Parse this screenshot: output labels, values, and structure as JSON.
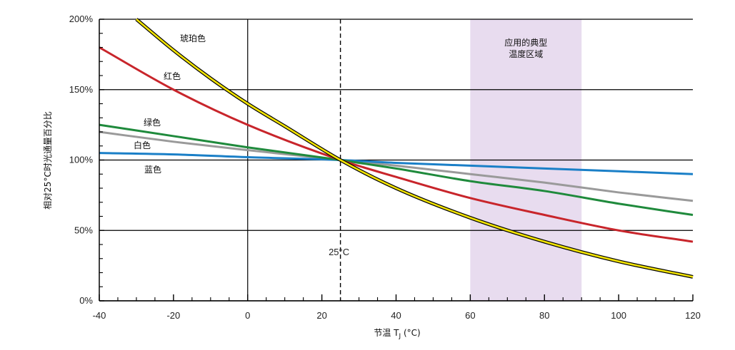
{
  "chart_data": {
    "type": "line",
    "xlabel_main": "节温 T",
    "xlabel_sub": "J",
    "xlabel_unit": " (°C)",
    "ylabel": "相对25°C时光通量百分比",
    "xlim": [
      -40,
      120
    ],
    "ylim": [
      0,
      200
    ],
    "x_ticks": [
      -40,
      -20,
      0,
      20,
      40,
      60,
      80,
      100,
      120
    ],
    "y_ticks": [
      0,
      50,
      100,
      150,
      200
    ],
    "y_tick_labels": [
      "0%",
      "50%",
      "100%",
      "150%",
      "200%"
    ],
    "grid": {
      "horizontal": [
        0,
        50,
        100,
        150,
        200
      ],
      "vertical": [
        0
      ]
    },
    "reference_line": {
      "x": 25,
      "label": "25°C",
      "style": "dashed"
    },
    "shaded_region": {
      "x_start": 60,
      "x_end": 90,
      "label_line1": "应用的典型",
      "label_line2": "温度区域",
      "color": "#e8dcef"
    },
    "series": [
      {
        "name": "琥珀色",
        "color": "#f2e300",
        "x": [
          -30,
          -20,
          -10,
          0,
          10,
          25,
          40,
          60,
          80,
          100,
          120
        ],
        "y": [
          200,
          178,
          158,
          140,
          124,
          100,
          80,
          59,
          42,
          28,
          17
        ]
      },
      {
        "name": "红色",
        "color": "#c8252b",
        "x": [
          -40,
          -20,
          0,
          25,
          40,
          60,
          80,
          100,
          120
        ],
        "y": [
          180,
          150,
          125,
          100,
          88,
          73,
          61,
          50,
          42
        ]
      },
      {
        "name": "绿色",
        "color": "#1f8a3c",
        "x": [
          -40,
          -20,
          0,
          25,
          40,
          60,
          80,
          100,
          120
        ],
        "y": [
          125,
          117,
          109,
          100,
          94,
          85,
          78,
          69,
          61
        ]
      },
      {
        "name": "白色",
        "color": "#9a9a9a",
        "x": [
          -40,
          -20,
          0,
          25,
          40,
          60,
          80,
          100,
          120
        ],
        "y": [
          120,
          113,
          107,
          100,
          96,
          90,
          84,
          77,
          71
        ]
      },
      {
        "name": "蓝色",
        "color": "#1a7fc7",
        "x": [
          -40,
          -20,
          0,
          25,
          40,
          60,
          80,
          100,
          120
        ],
        "y": [
          105,
          104,
          102,
          100,
          98,
          96,
          94,
          92,
          90
        ]
      }
    ]
  }
}
